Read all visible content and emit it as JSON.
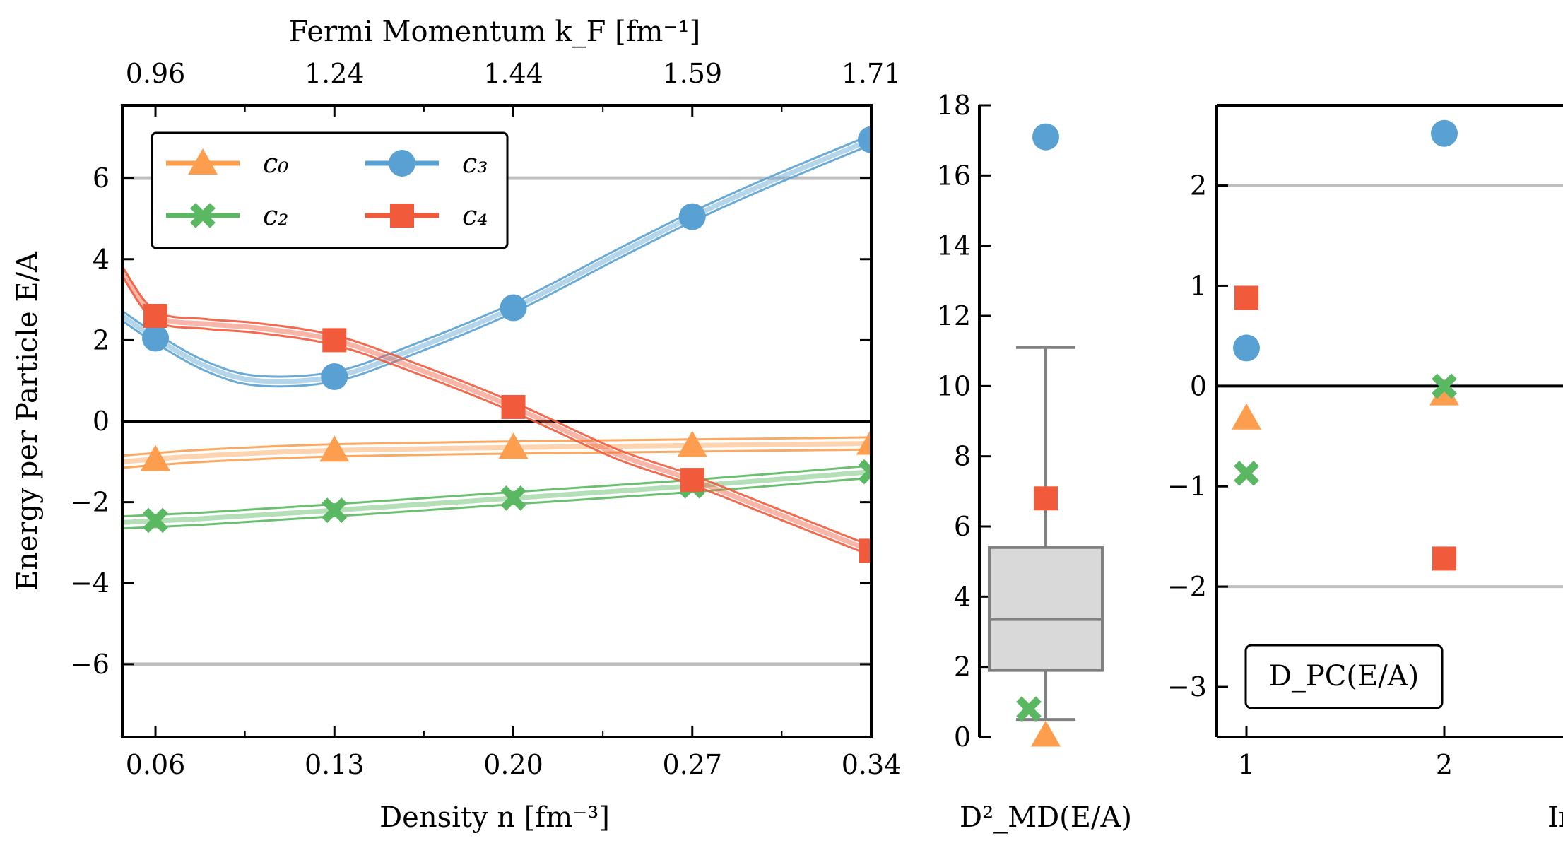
{
  "colors": {
    "c0": "#fd9e4f",
    "c2": "#5bb862",
    "c3": "#5aa1d3",
    "c4": "#f25a3c",
    "zero": "#000000",
    "band": "#bfbfbf",
    "box_fill": "#d9d9d9",
    "box_edge": "#808080"
  },
  "chart_data": [
    {
      "type": "line",
      "name": "energy-vs-density",
      "xlabel": "Density n [fm⁻³]",
      "ylabel": "Energy per Particle E/A",
      "top_xlabel": "Fermi Momentum k_F [fm⁻¹]",
      "xlim": [
        0.047,
        0.34
      ],
      "ylim": [
        -7.8,
        7.8
      ],
      "xticks": [
        0.06,
        0.13,
        0.2,
        0.27,
        0.34
      ],
      "xtick_labels": [
        "0.06",
        "0.13",
        "0.20",
        "0.27",
        "0.34"
      ],
      "top_xtick_labels": [
        "0.96",
        "1.24",
        "1.44",
        "1.59",
        "1.71"
      ],
      "yticks": [
        -6,
        -4,
        -2,
        0,
        2,
        4,
        6
      ],
      "ytick_labels": [
        "−6",
        "−4",
        "−2",
        "0",
        "2",
        "4",
        "6"
      ],
      "hlines": [
        6,
        -6
      ],
      "zero_line": 0,
      "legend": [
        "c₀",
        "c₂",
        "c₃",
        "c₄"
      ],
      "legend_placement": "top-left",
      "series": [
        {
          "name": "c0",
          "marker": "triangle",
          "x": [
            0.06,
            0.13,
            0.2,
            0.27,
            0.34
          ],
          "y": [
            -0.95,
            -0.72,
            -0.65,
            -0.6,
            -0.55
          ],
          "curve_x": [
            0.047,
            0.08,
            0.13,
            0.2,
            0.27,
            0.34
          ],
          "curve_y": [
            -1.0,
            -0.85,
            -0.72,
            -0.65,
            -0.6,
            -0.55
          ],
          "band": 0.15
        },
        {
          "name": "c2",
          "marker": "x",
          "x": [
            0.06,
            0.13,
            0.2,
            0.27,
            0.34
          ],
          "y": [
            -2.45,
            -2.2,
            -1.9,
            -1.6,
            -1.25
          ],
          "curve_x": [
            0.047,
            0.08,
            0.13,
            0.2,
            0.27,
            0.34
          ],
          "curve_y": [
            -2.5,
            -2.4,
            -2.2,
            -1.9,
            -1.6,
            -1.25
          ],
          "band": 0.15
        },
        {
          "name": "c3",
          "marker": "circle",
          "x": [
            0.06,
            0.13,
            0.2,
            0.27,
            0.34
          ],
          "y": [
            2.05,
            1.1,
            2.8,
            5.05,
            6.95
          ],
          "curve_x": [
            0.047,
            0.06,
            0.08,
            0.1,
            0.13,
            0.16,
            0.2,
            0.24,
            0.27,
            0.3,
            0.34
          ],
          "curve_y": [
            2.6,
            2.05,
            1.35,
            1.0,
            1.1,
            1.75,
            2.8,
            4.1,
            5.05,
            5.9,
            6.95
          ],
          "band": 0.12
        },
        {
          "name": "c4",
          "marker": "square",
          "x": [
            0.06,
            0.13,
            0.2,
            0.27,
            0.34
          ],
          "y": [
            2.6,
            2.0,
            0.35,
            -1.45,
            -3.2
          ],
          "curve_x": [
            0.047,
            0.06,
            0.08,
            0.1,
            0.13,
            0.16,
            0.2,
            0.24,
            0.27,
            0.3,
            0.34
          ],
          "curve_y": [
            3.7,
            2.6,
            2.4,
            2.3,
            2.0,
            1.35,
            0.35,
            -0.8,
            -1.45,
            -2.2,
            -3.2
          ],
          "band": 0.12
        }
      ]
    },
    {
      "type": "box",
      "name": "mahalanobis-distance",
      "xlabel": "D²_MD(E/A)",
      "ylim": [
        0,
        18
      ],
      "yticks": [
        0,
        2,
        4,
        6,
        8,
        10,
        12,
        14,
        16,
        18
      ],
      "ytick_labels": [
        "0",
        "2",
        "4",
        "6",
        "8",
        "10",
        "12",
        "14",
        "16",
        "18"
      ],
      "box": {
        "whisker_low": 0.5,
        "q1": 1.9,
        "median": 3.35,
        "q3": 5.4,
        "whisker_high": 11.1
      },
      "points": [
        {
          "name": "c3",
          "marker": "circle",
          "y": 17.1
        },
        {
          "name": "c4",
          "marker": "square",
          "y": 6.8
        },
        {
          "name": "c2",
          "marker": "x",
          "y": 0.8
        },
        {
          "name": "c0",
          "marker": "triangle",
          "y": 0.05
        }
      ]
    },
    {
      "type": "scatter",
      "name": "pivoted-cholesky",
      "xlabel": "Index",
      "annotation": "D_PC(E/A)",
      "xlim": [
        0.85,
        2.6
      ],
      "ylim": [
        -3.5,
        2.8
      ],
      "xticks": [
        1,
        2
      ],
      "xtick_labels": [
        "1",
        "2"
      ],
      "yticks": [
        -3,
        -2,
        -1,
        0,
        1,
        2
      ],
      "ytick_labels": [
        "−3",
        "−2",
        "−1",
        "0",
        "1",
        "2"
      ],
      "hlines": [
        2,
        -2
      ],
      "zero_line": 0,
      "series": [
        {
          "name": "c3",
          "marker": "circle",
          "x": [
            1,
            2
          ],
          "y": [
            0.38,
            2.52
          ]
        },
        {
          "name": "c4",
          "marker": "square",
          "x": [
            1,
            2
          ],
          "y": [
            0.88,
            -1.72
          ]
        },
        {
          "name": "c0",
          "marker": "triangle",
          "x": [
            1,
            2
          ],
          "y": [
            -0.32,
            -0.08
          ]
        },
        {
          "name": "c2",
          "marker": "x",
          "x": [
            1,
            2
          ],
          "y": [
            -0.87,
            0.0
          ]
        }
      ]
    }
  ]
}
